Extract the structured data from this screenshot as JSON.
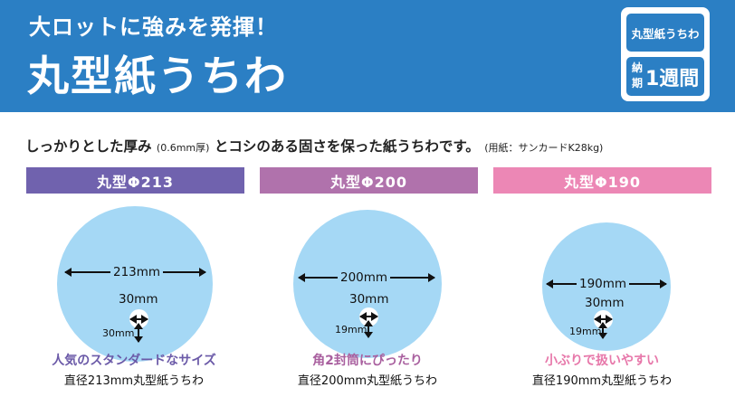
{
  "header": {
    "tagline": "大ロットに強みを発揮！",
    "title": "丸型紙うちわ",
    "badge": {
      "name": "丸型紙うちわ",
      "delivery_label": "納期",
      "delivery_value": "1週間"
    }
  },
  "description": {
    "part1": "しっかりとした厚み",
    "thickness": "(0.6mm厚)",
    "part2": "とコシのある固さを保った紙うちわです。",
    "material": "(用紙：サンカードK28kg)"
  },
  "sizes": [
    {
      "header": "丸型Φ213",
      "header_color": "#7062ae",
      "width_label": "213mm",
      "hole_width": "30mm",
      "hole_height": "30mm",
      "caption": "人気のスタンダードなサイズ",
      "caption_color": "#6b5aa8",
      "subcaption": "直径213mm丸型紙うちわ"
    },
    {
      "header": "丸型Φ200",
      "header_color": "#b072ac",
      "width_label": "200mm",
      "hole_width": "30mm",
      "hole_height": "19mm",
      "caption": "角2封筒にぴったり",
      "caption_color": "#a9609f",
      "subcaption": "直径200mm丸型紙うちわ"
    },
    {
      "header": "丸型Φ190",
      "header_color": "#ec87b5",
      "width_label": "190mm",
      "hole_width": "30mm",
      "hole_height": "19mm",
      "caption": "小ぶりで扱いやすい",
      "caption_color": "#e778aa",
      "subcaption": "直径190mm丸型紙うちわ"
    }
  ]
}
